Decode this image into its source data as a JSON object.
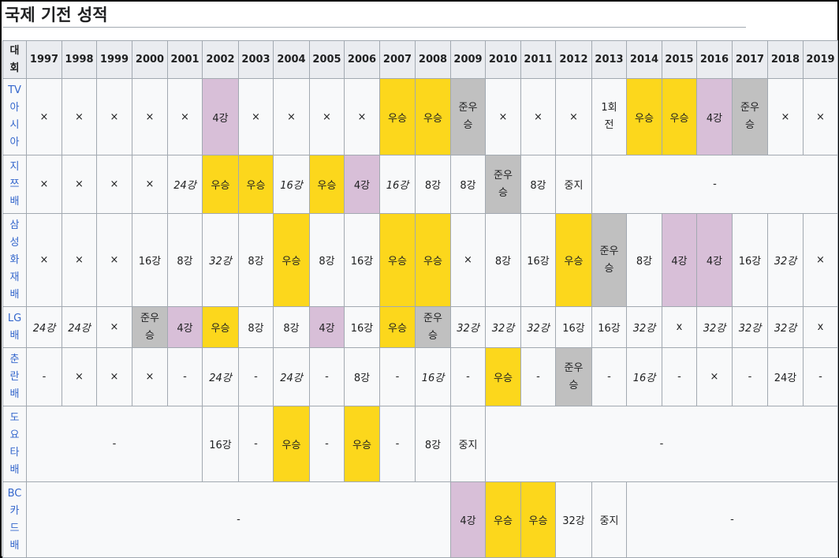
{
  "heading": "국제 기전 성적",
  "header": {
    "first": "대\n회",
    "years": [
      "1997",
      "1998",
      "1999",
      "2000",
      "2001",
      "2002",
      "2003",
      "2004",
      "2005",
      "2006",
      "2007",
      "2008",
      "2009",
      "2010",
      "2011",
      "2012",
      "2013",
      "2014",
      "2015",
      "2016",
      "2017",
      "2018",
      "2019"
    ]
  },
  "rows": [
    {
      "name": "TV\n아\n시\n아",
      "height": 97,
      "cells": [
        {
          "t": "×"
        },
        {
          "t": "×"
        },
        {
          "t": "×"
        },
        {
          "t": "×"
        },
        {
          "t": "×"
        },
        {
          "t": "4강",
          "c": "fourth"
        },
        {
          "t": "×"
        },
        {
          "t": "×"
        },
        {
          "t": "×"
        },
        {
          "t": "×"
        },
        {
          "t": "우승",
          "c": "win"
        },
        {
          "t": "우승",
          "c": "win"
        },
        {
          "t": "준우\n승",
          "c": "second"
        },
        {
          "t": "×"
        },
        {
          "t": "×"
        },
        {
          "t": "×"
        },
        {
          "t": "1회\n전"
        },
        {
          "t": "우승",
          "c": "win"
        },
        {
          "t": "우승",
          "c": "win"
        },
        {
          "t": "4강",
          "c": "fourth"
        },
        {
          "t": "준우\n승",
          "c": "second"
        },
        {
          "t": "×"
        },
        {
          "t": "×"
        }
      ]
    },
    {
      "name": "지\n쯔\n배",
      "height": 74,
      "cells": [
        {
          "t": "×"
        },
        {
          "t": "×"
        },
        {
          "t": "×"
        },
        {
          "t": "×"
        },
        {
          "t": "24강",
          "i": true
        },
        {
          "t": "우승",
          "c": "win"
        },
        {
          "t": "우승",
          "c": "win"
        },
        {
          "t": "16강",
          "i": true
        },
        {
          "t": "우승",
          "c": "win"
        },
        {
          "t": "4강",
          "c": "fourth"
        },
        {
          "t": "16강",
          "i": true
        },
        {
          "t": "8강"
        },
        {
          "t": "8강"
        },
        {
          "t": "준우\n승",
          "c": "second"
        },
        {
          "t": "8강"
        },
        {
          "t": "중지"
        },
        {
          "t": "-",
          "span": 7
        }
      ]
    },
    {
      "name": "삼\n성\n화\n재\n배",
      "height": 118,
      "cells": [
        {
          "t": "×"
        },
        {
          "t": "×"
        },
        {
          "t": "×"
        },
        {
          "t": "16강"
        },
        {
          "t": "8강"
        },
        {
          "t": "32강",
          "i": true
        },
        {
          "t": "8강"
        },
        {
          "t": "우승",
          "c": "win"
        },
        {
          "t": "8강"
        },
        {
          "t": "16강"
        },
        {
          "t": "우승",
          "c": "win"
        },
        {
          "t": "우승",
          "c": "win"
        },
        {
          "t": "×"
        },
        {
          "t": "8강"
        },
        {
          "t": "16강"
        },
        {
          "t": "우승",
          "c": "win"
        },
        {
          "t": "준우\n승",
          "c": "second"
        },
        {
          "t": "8강"
        },
        {
          "t": "4강",
          "c": "fourth"
        },
        {
          "t": "4강",
          "c": "fourth"
        },
        {
          "t": "16강"
        },
        {
          "t": "32강",
          "i": true
        },
        {
          "t": "×"
        }
      ]
    },
    {
      "name": "LG\n배",
      "height": 52,
      "cells": [
        {
          "t": "24강",
          "i": true
        },
        {
          "t": "24강",
          "i": true
        },
        {
          "t": "×"
        },
        {
          "t": "준우\n승",
          "c": "second"
        },
        {
          "t": "4강",
          "c": "fourth"
        },
        {
          "t": "우승",
          "c": "win"
        },
        {
          "t": "8강"
        },
        {
          "t": "8강"
        },
        {
          "t": "4강",
          "c": "fourth"
        },
        {
          "t": "16강"
        },
        {
          "t": "우승",
          "c": "win"
        },
        {
          "t": "준우\n승",
          "c": "second"
        },
        {
          "t": "32강",
          "i": true
        },
        {
          "t": "32강",
          "i": true
        },
        {
          "t": "32강",
          "i": true
        },
        {
          "t": "16강"
        },
        {
          "t": "16강"
        },
        {
          "t": "32강",
          "i": true
        },
        {
          "t": "x"
        },
        {
          "t": "32강",
          "i": true
        },
        {
          "t": "32강",
          "i": true
        },
        {
          "t": "32강",
          "i": true
        },
        {
          "t": "x"
        }
      ]
    },
    {
      "name": "춘\n란\n배",
      "height": 74,
      "cells": [
        {
          "t": "-"
        },
        {
          "t": "×"
        },
        {
          "t": "×"
        },
        {
          "t": "×"
        },
        {
          "t": "-"
        },
        {
          "t": "24강",
          "i": true
        },
        {
          "t": "-"
        },
        {
          "t": "24강",
          "i": true
        },
        {
          "t": "-"
        },
        {
          "t": "8강"
        },
        {
          "t": "-"
        },
        {
          "t": "16강",
          "i": true
        },
        {
          "t": "-"
        },
        {
          "t": "우승",
          "c": "win"
        },
        {
          "t": "-"
        },
        {
          "t": "준우\n승",
          "c": "second"
        },
        {
          "t": "-"
        },
        {
          "t": "16강",
          "i": true
        },
        {
          "t": "-"
        },
        {
          "t": "×"
        },
        {
          "t": "-"
        },
        {
          "t": "24강"
        },
        {
          "t": "-"
        }
      ]
    },
    {
      "name": "도\n요\n타\n배",
      "height": 96,
      "cells": [
        {
          "t": "-",
          "span": 5
        },
        {
          "t": "16강"
        },
        {
          "t": "-"
        },
        {
          "t": "우승",
          "c": "win"
        },
        {
          "t": "-"
        },
        {
          "t": "우승",
          "c": "win"
        },
        {
          "t": "-"
        },
        {
          "t": "8강"
        },
        {
          "t": "중지"
        },
        {
          "t": "-",
          "span": 10
        }
      ]
    },
    {
      "name": "BC\n카\n드\n배",
      "height": 96,
      "cells": [
        {
          "t": "-",
          "span": 12
        },
        {
          "t": "4강",
          "c": "fourth"
        },
        {
          "t": "우승",
          "c": "win"
        },
        {
          "t": "우승",
          "c": "win"
        },
        {
          "t": "32강"
        },
        {
          "t": "중지"
        },
        {
          "t": "-",
          "span": 6
        }
      ]
    }
  ]
}
